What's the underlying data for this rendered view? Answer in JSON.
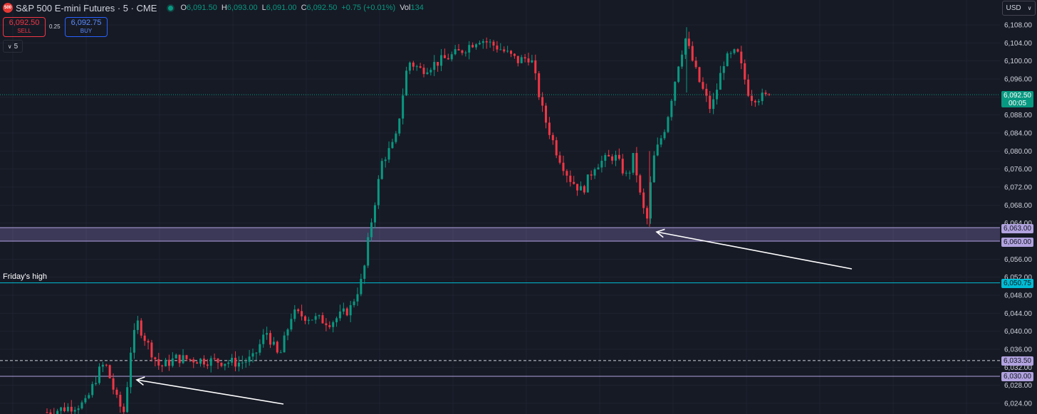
{
  "header": {
    "logo_text": "500",
    "symbol_title": "S&P 500 E-mini Futures · 5 · CME",
    "open_label": "O",
    "open": "6,091.50",
    "high_label": "H",
    "high": "6,093.00",
    "low_label": "L",
    "low": "6,091.00",
    "close_label": "C",
    "close": "6,092.50",
    "change": "+0.75 (+0.01%)",
    "vol_label": "Vol",
    "vol": "134"
  },
  "trade": {
    "sell_price": "6,092.50",
    "sell_label": "SELL",
    "spread": "0.25",
    "buy_price": "6,092.75",
    "buy_label": "BUY"
  },
  "interval_toggle": "5",
  "currency_menu": "USD",
  "annotations": {
    "fridays_high_label": "Friday's high"
  },
  "price_tags": {
    "zone_top": "6,063.00",
    "zone_bottom": "6,060.00",
    "fridays_high": "6,050.75",
    "dashed_level": "6,033.50",
    "support_level": "6,030.00",
    "last_price": "6,092.50",
    "countdown": "00:05"
  },
  "colors": {
    "background": "#161a25",
    "up": "#089981",
    "down": "#f23645",
    "zone": "#b2a3e0",
    "fridays_high_line": "#00bcd4"
  },
  "chart_data": {
    "type": "candlestick",
    "title": "S&P 500 E-mini Futures · 5 · CME",
    "ylim": [
      6022,
      6110
    ],
    "y_ticks": [
      6024,
      6028,
      6032,
      6036,
      6040,
      6044,
      6048,
      6052,
      6056,
      6060,
      6064,
      6068,
      6072,
      6076,
      6080,
      6084,
      6088,
      6092,
      6096,
      6100,
      6104,
      6108
    ],
    "y_tick_labels": [
      "6,024.00",
      "6,028.00",
      "6,032.00",
      "6,036.00",
      "6,040.00",
      "6,044.00",
      "6,048.00",
      "6,052.00",
      "6,056.00",
      "6,060.00",
      "6,064.00",
      "6,068.00",
      "6,072.00",
      "6,076.00",
      "6,080.00",
      "6,084.00",
      "6,088.00",
      "6,092.00",
      "6,096.00",
      "6,100.00",
      "6,104.00",
      "6,108.00"
    ],
    "grid": true,
    "bar_count": 208,
    "price_path": [
      [
        0,
        6022
      ],
      [
        12,
        6024
      ],
      [
        16,
        6031
      ],
      [
        18,
        6033
      ],
      [
        22,
        6024
      ],
      [
        24,
        6022
      ],
      [
        26,
        6036
      ],
      [
        28,
        6042
      ],
      [
        32,
        6036
      ],
      [
        35,
        6032
      ],
      [
        40,
        6034
      ],
      [
        60,
        6033
      ],
      [
        64,
        6034
      ],
      [
        68,
        6040
      ],
      [
        72,
        6034
      ],
      [
        76,
        6044
      ],
      [
        82,
        6043
      ],
      [
        88,
        6042
      ],
      [
        94,
        6045
      ],
      [
        98,
        6052
      ],
      [
        100,
        6062
      ],
      [
        104,
        6078
      ],
      [
        108,
        6082
      ],
      [
        112,
        6100
      ],
      [
        116,
        6098
      ],
      [
        122,
        6100
      ],
      [
        128,
        6102
      ],
      [
        134,
        6105
      ],
      [
        140,
        6103
      ],
      [
        146,
        6100
      ],
      [
        150,
        6101
      ],
      [
        154,
        6088
      ],
      [
        158,
        6080
      ],
      [
        162,
        6074
      ],
      [
        166,
        6071
      ],
      [
        170,
        6077
      ],
      [
        176,
        6079
      ],
      [
        180,
        6074
      ],
      [
        182,
        6079
      ],
      [
        184,
        6070
      ],
      [
        186,
        6064
      ],
      [
        188,
        6078
      ],
      [
        192,
        6086
      ],
      [
        196,
        6100
      ],
      [
        198,
        6105
      ],
      [
        202,
        6096
      ],
      [
        206,
        6089
      ],
      [
        210,
        6100
      ],
      [
        214,
        6102
      ],
      [
        218,
        6092
      ],
      [
        224,
        6092
      ]
    ],
    "horizontal_levels": [
      {
        "value": 6063.0,
        "label": "6,063.00"
      },
      {
        "value": 6060.0,
        "label": "6,060.00"
      },
      {
        "value": 6050.75,
        "label": "6,050.75",
        "name": "Friday's high"
      },
      {
        "value": 6033.5,
        "label": "6,033.50",
        "style": "dashed"
      },
      {
        "value": 6030.0,
        "label": "6,030.00"
      },
      {
        "value": 6092.5,
        "label": "6,092.50",
        "style": "dotted"
      }
    ]
  }
}
